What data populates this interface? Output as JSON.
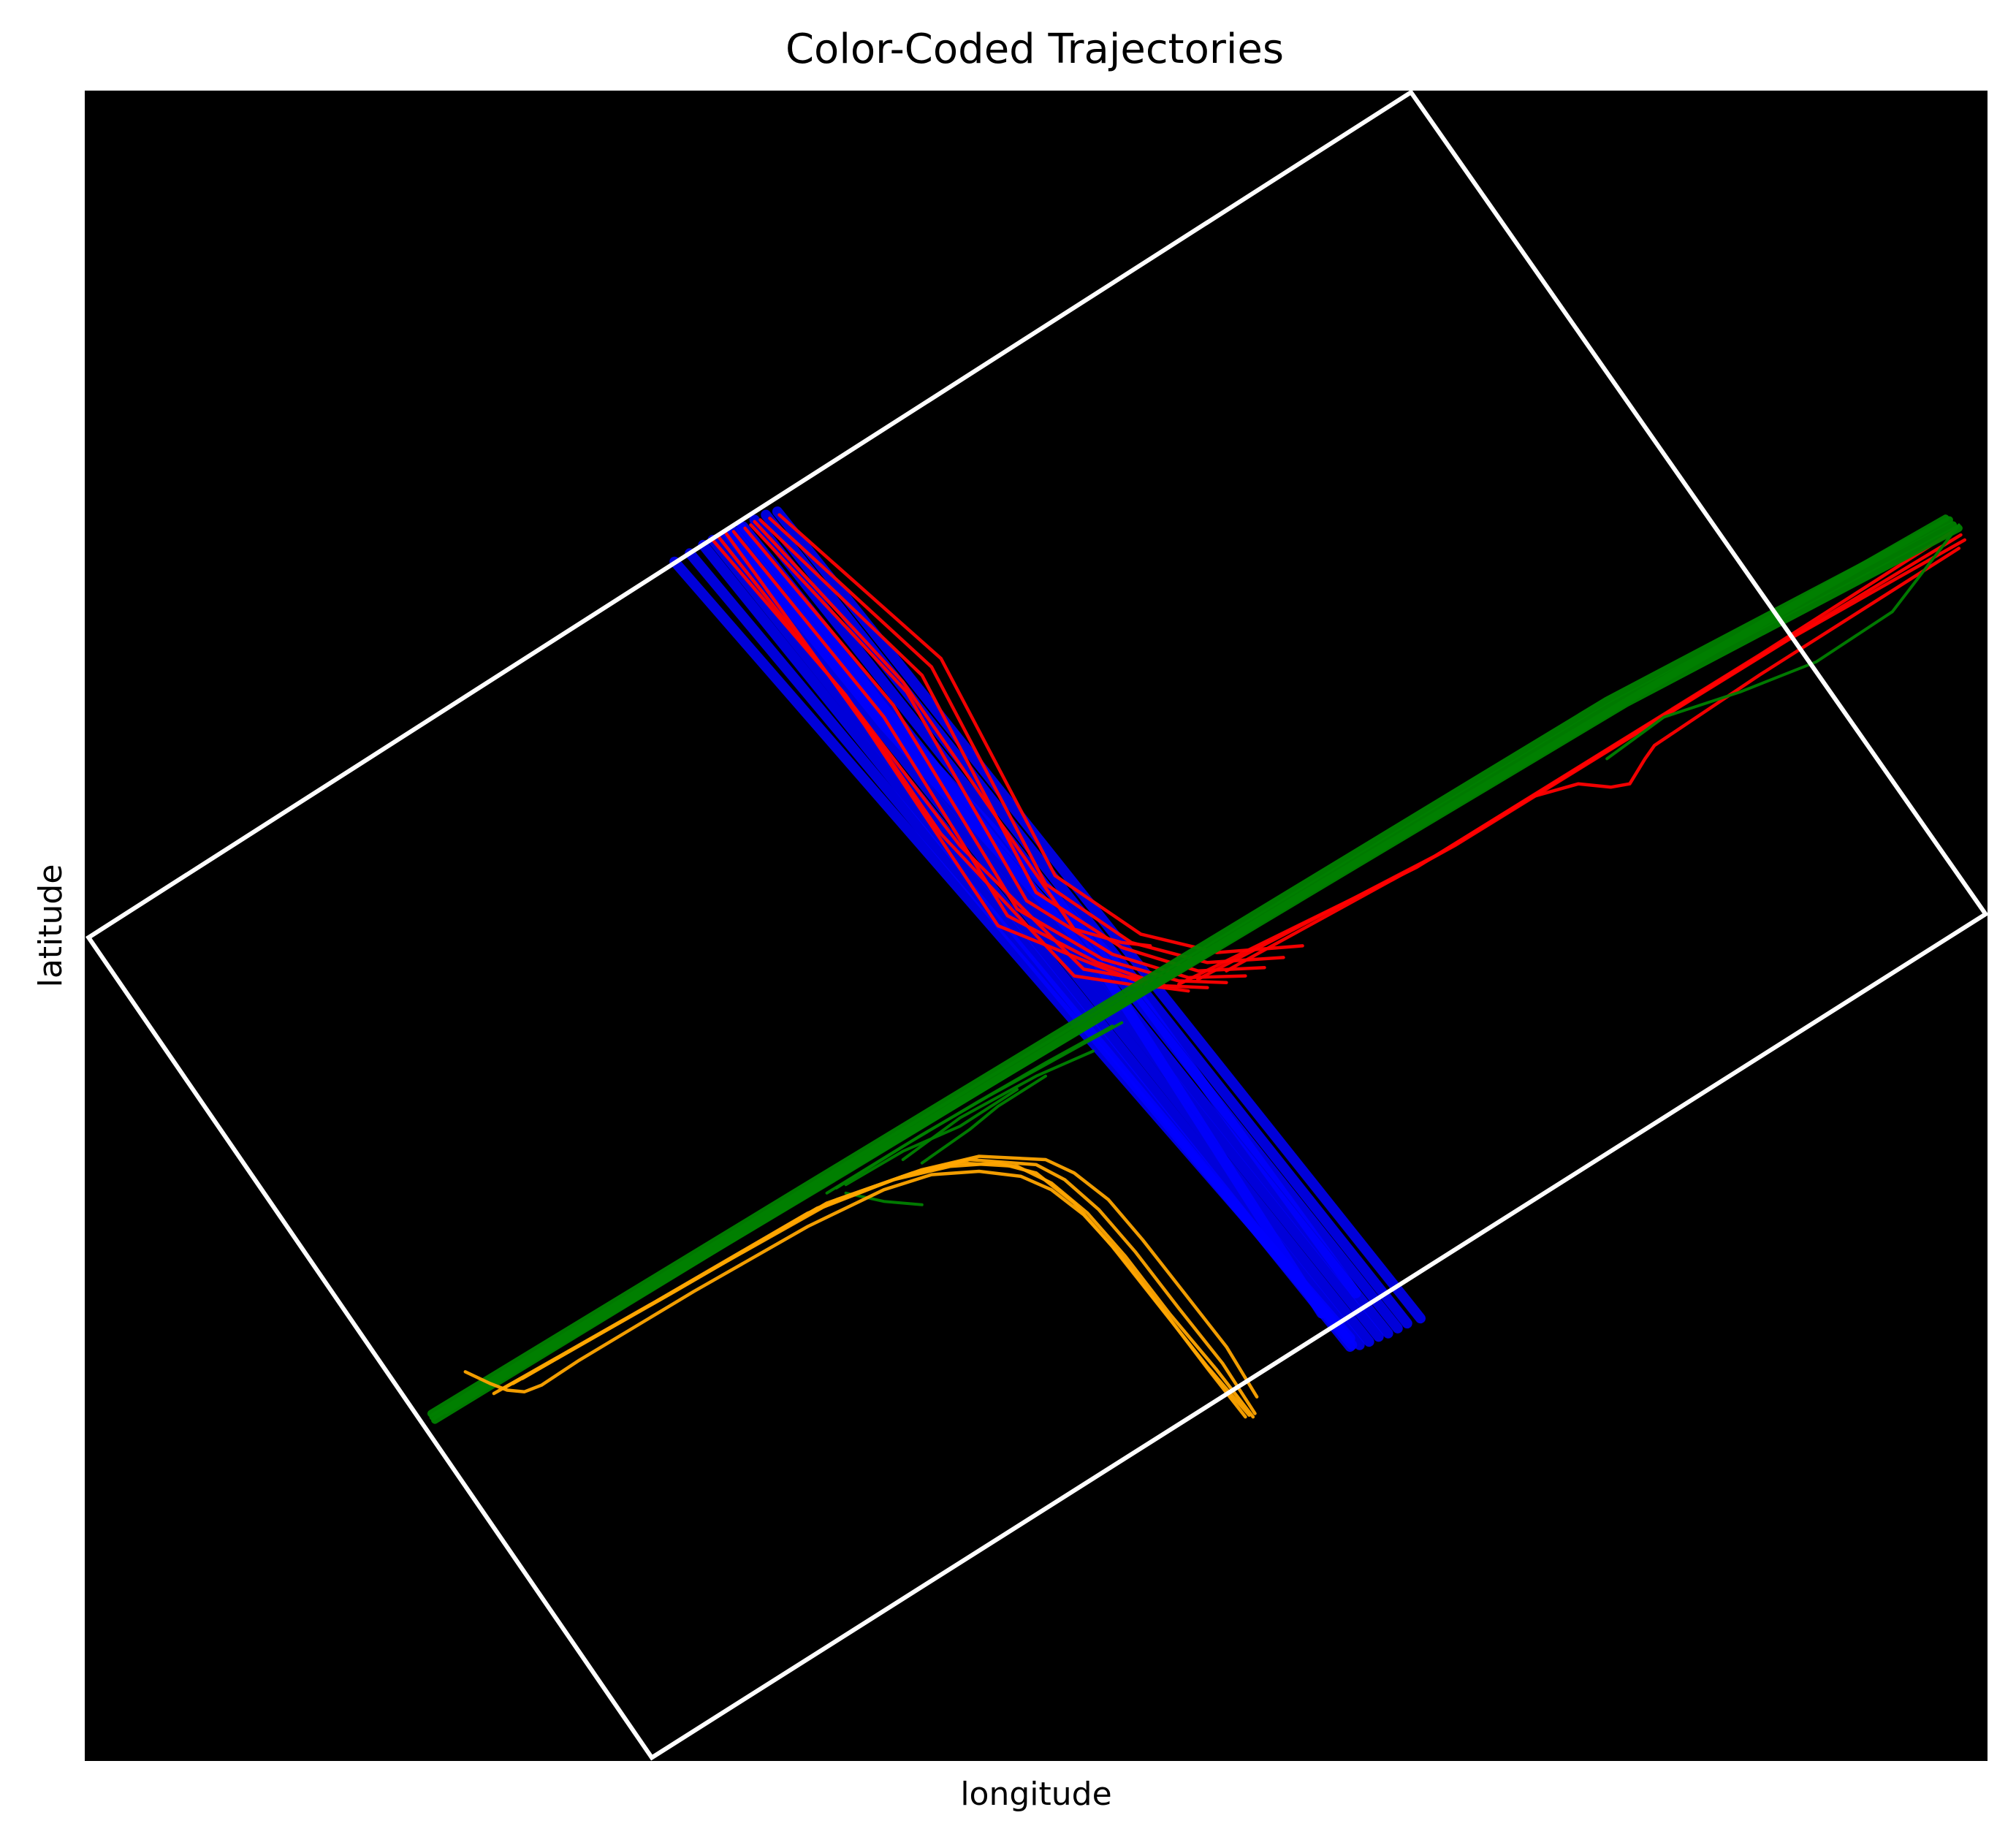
{
  "chart_data": {
    "type": "line",
    "title": "Color-Coded Trajectories",
    "xlabel": "longitude",
    "ylabel": "latitude",
    "xlim": [
      0,
      1000
    ],
    "ylim": [
      0,
      1000
    ],
    "grid": false,
    "legend": "none",
    "background_color": "#000000",
    "boundary": {
      "color": "#ffffff",
      "points": [
        [
          2,
          493
        ],
        [
          697,
          999
        ],
        [
          999,
          507
        ],
        [
          298,
          2
        ]
      ]
    },
    "series": [
      {
        "color": "#0000ff",
        "lines": [
          [
            [
              310,
              718
            ],
            [
              665,
              253
            ]
          ],
          [
            [
              318,
              723
            ],
            [
              666,
              249
            ]
          ],
          [
            [
              325,
              728
            ],
            [
              665,
              248
            ]
          ],
          [
            [
              330,
              731
            ],
            [
              670,
              249
            ]
          ],
          [
            [
              336,
              734
            ],
            [
              675,
              251
            ]
          ],
          [
            [
              341,
              736
            ],
            [
              680,
              254
            ]
          ],
          [
            [
              346,
              739
            ],
            [
              685,
              256
            ]
          ],
          [
            [
              352,
              743
            ],
            [
              690,
              259
            ]
          ],
          [
            [
              358,
              746
            ],
            [
              695,
              262
            ]
          ],
          [
            [
              364,
              748
            ],
            [
              702,
              265
            ]
          ],
          [
            [
              338,
              735
            ],
            [
              420,
              620
            ],
            [
              530,
              482
            ],
            [
              650,
              268
            ]
          ],
          [
            [
              345,
              738
            ],
            [
              430,
              616
            ],
            [
              540,
              480
            ],
            [
              668,
              280
            ]
          ]
        ]
      },
      {
        "color": "#ff0000",
        "lines": [
          [
            [
              337,
              735
            ],
            [
              410,
              620
            ],
            [
              480,
              500
            ],
            [
              530,
              477
            ],
            [
              560,
              464
            ],
            [
              580,
              461
            ]
          ],
          [
            [
              341,
              736
            ],
            [
              420,
              625
            ],
            [
              485,
              506
            ],
            [
              532,
              478
            ],
            [
              568,
              464
            ],
            [
              590,
              463
            ]
          ],
          [
            [
              347,
              738
            ],
            [
              425,
              632
            ],
            [
              490,
              510
            ],
            [
              535,
              480
            ],
            [
              575,
              467
            ],
            [
              600,
              466
            ]
          ],
          [
            [
              350,
              740
            ],
            [
              432,
              640
            ],
            [
              495,
              515
            ],
            [
              540,
              483
            ],
            [
              580,
              469
            ],
            [
              610,
              470
            ]
          ],
          [
            [
              355,
              743
            ],
            [
              440,
              650
            ],
            [
              500,
              520
            ],
            [
              545,
              487
            ],
            [
              585,
              473
            ],
            [
              620,
              475
            ]
          ],
          [
            [
              360,
              744
            ],
            [
              445,
              655
            ],
            [
              505,
              525
            ],
            [
              550,
              490
            ],
            [
              590,
              478
            ],
            [
              630,
              481
            ]
          ],
          [
            [
              365,
              746
            ],
            [
              450,
              660
            ],
            [
              510,
              530
            ],
            [
              555,
              495
            ],
            [
              595,
              484
            ],
            [
              640,
              488
            ]
          ],
          [
            [
              330,
              731
            ],
            [
              400,
              638
            ],
            [
              450,
              555
            ],
            [
              520,
              470
            ],
            [
              555,
              464
            ]
          ],
          [
            [
              333,
              733
            ],
            [
              405,
              630
            ],
            [
              460,
              548
            ],
            [
              525,
              474
            ],
            [
              565,
              466
            ]
          ],
          [
            [
              352,
              742
            ],
            [
              430,
              646
            ],
            [
              470,
              580
            ],
            [
              520,
              498
            ],
            [
              545,
              490
            ],
            [
              560,
              488
            ]
          ],
          [
            [
              575,
              465
            ],
            [
              700,
              535
            ],
            [
              880,
              662
            ],
            [
              983,
              737
            ]
          ],
          [
            [
              585,
              468
            ],
            [
              710,
              542
            ],
            [
              890,
              668
            ],
            [
              986,
              734
            ]
          ],
          [
            [
              600,
              473
            ],
            [
              720,
              548
            ],
            [
              895,
              671
            ],
            [
              988,
              731
            ]
          ],
          [
            [
              760,
              577
            ],
            [
              785,
              585
            ],
            [
              802,
              583
            ],
            [
              812,
              585
            ],
            [
              820,
              600
            ],
            [
              825,
              608
            ],
            [
              880,
              650
            ],
            [
              985,
              726
            ]
          ]
        ]
      },
      {
        "color": "#008000",
        "lines": [
          [
            [
              182,
              208
            ],
            [
              380,
              345
            ],
            [
              590,
              490
            ],
            [
              800,
              635
            ],
            [
              980,
              743
            ]
          ],
          [
            [
              183,
              206
            ],
            [
              385,
              346
            ],
            [
              595,
              490
            ],
            [
              805,
              634
            ],
            [
              982,
              740
            ]
          ],
          [
            [
              184,
              204
            ],
            [
              390,
              347
            ],
            [
              600,
              490
            ],
            [
              810,
              633
            ],
            [
              985,
              738
            ]
          ],
          [
            [
              190,
              210
            ],
            [
              400,
              353
            ],
            [
              610,
              498
            ],
            [
              820,
              641
            ],
            [
              978,
              744
            ]
          ],
          [
            [
              390,
              340
            ],
            [
              430,
              368
            ],
            [
              470,
              395
            ],
            [
              505,
              418
            ],
            [
              540,
              440
            ]
          ],
          [
            [
              395,
              343
            ],
            [
              440,
              375
            ],
            [
              475,
              398
            ],
            [
              510,
              420
            ],
            [
              545,
              442
            ]
          ],
          [
            [
              430,
              360
            ],
            [
              460,
              385
            ],
            [
              500,
              410
            ],
            [
              530,
              425
            ]
          ],
          [
            [
              440,
              358
            ],
            [
              465,
              378
            ],
            [
              480,
              392
            ],
            [
              505,
              410
            ]
          ],
          [
            [
              400,
              345
            ],
            [
              430,
              365
            ],
            [
              460,
              380
            ],
            [
              490,
              402
            ]
          ],
          [
            [
              800,
              600
            ],
            [
              830,
              625
            ],
            [
              870,
              640
            ],
            [
              910,
              658
            ],
            [
              950,
              688
            ],
            [
              985,
              740
            ]
          ],
          [
            [
              400,
              340
            ],
            [
              420,
              335
            ],
            [
              440,
              333
            ]
          ]
        ]
      },
      {
        "color": "#ffa500",
        "lines": [
          [
            [
              200,
              233
            ],
            [
              213,
              226
            ],
            [
              222,
              222
            ],
            [
              231,
              221
            ],
            [
              240,
              225
            ],
            [
              260,
              240
            ],
            [
              320,
              281
            ],
            [
              380,
              320
            ],
            [
              420,
              342
            ],
            [
              445,
              351
            ],
            [
              470,
              353
            ],
            [
              492,
              350
            ],
            [
              508,
              342
            ],
            [
              525,
              327
            ],
            [
              545,
              302
            ],
            [
              568,
              268
            ],
            [
              590,
              235
            ],
            [
              610,
              206
            ]
          ],
          [
            [
              215,
              220
            ],
            [
              300,
              275
            ],
            [
              380,
              328
            ],
            [
              425,
              348
            ],
            [
              455,
              356
            ],
            [
              480,
              358
            ],
            [
              500,
              352
            ],
            [
              520,
              334
            ],
            [
              540,
              308
            ],
            [
              565,
              272
            ],
            [
              590,
              236
            ],
            [
              612,
              207
            ]
          ],
          [
            [
              220,
              223
            ],
            [
              305,
              278
            ],
            [
              385,
              331
            ],
            [
              430,
              350
            ],
            [
              460,
              358
            ],
            [
              490,
              356
            ],
            [
              508,
              346
            ],
            [
              527,
              328
            ],
            [
              547,
              302
            ],
            [
              570,
              268
            ],
            [
              595,
              234
            ],
            [
              614,
              206
            ]
          ],
          [
            [
              225,
              226
            ],
            [
              310,
              281
            ],
            [
              390,
              334
            ],
            [
              435,
              352
            ],
            [
              465,
              360
            ],
            [
              500,
              357
            ],
            [
              515,
              348
            ],
            [
              533,
              330
            ],
            [
              552,
              305
            ],
            [
              575,
              271
            ],
            [
              598,
              238
            ],
            [
              615,
              208
            ]
          ],
          [
            [
              230,
              229
            ],
            [
              320,
              288
            ],
            [
              395,
              336
            ],
            [
              440,
              354
            ],
            [
              470,
              362
            ],
            [
              505,
              360
            ],
            [
              520,
              352
            ],
            [
              538,
              336
            ],
            [
              556,
              312
            ],
            [
              578,
              280
            ],
            [
              600,
              248
            ],
            [
              616,
              218
            ]
          ]
        ]
      }
    ]
  }
}
